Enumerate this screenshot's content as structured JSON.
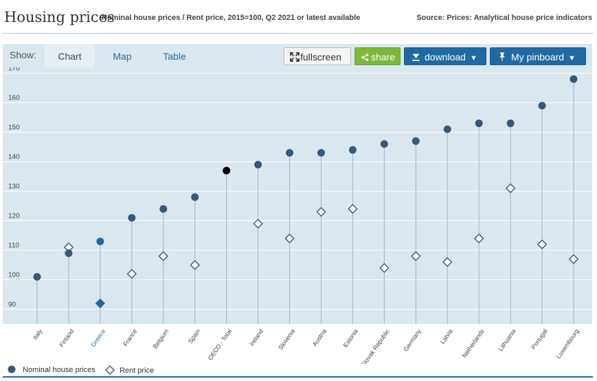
{
  "header": {
    "title": "Housing prices",
    "subtitle": "Nominal house prices / Rent price, 2015=100, Q2 2021 or latest available",
    "source": "Source: Prices: Analytical house price indicators"
  },
  "toolbar": {
    "show_label": "Show:",
    "tabs": [
      {
        "label": "Chart",
        "active": true
      },
      {
        "label": "Map",
        "active": false
      },
      {
        "label": "Table",
        "active": false
      }
    ],
    "fullscreen_label": "fullscreen",
    "share_label": "share",
    "download_label": "download",
    "pinboard_label": "My pinboard",
    "icons": {
      "fullscreen": "expand-icon",
      "share": "share-icon",
      "download": "download-icon",
      "pinboard": "pin-icon",
      "caret": "chevron-down-icon"
    }
  },
  "legend": {
    "nominal": "Nominal house prices",
    "rent": "Rent price"
  },
  "colors": {
    "plot_bg": "#dbe7ef",
    "series": "#35597a",
    "highlight": "#1f6aa5",
    "oecd": "#000000",
    "stem": "#9fb0bd",
    "grid": "#ffffff",
    "highlight_label": "#2a6b9c"
  },
  "chart_data": {
    "type": "scatter",
    "title": "Housing prices",
    "ylim": [
      85,
      172
    ],
    "yticks": [
      90,
      100,
      110,
      120,
      130,
      140,
      150,
      160,
      170
    ],
    "grid": true,
    "legend_position": "bottom-left",
    "highlight": "Greece",
    "categories": [
      "Italy",
      "Finland",
      "Greece",
      "France",
      "Belgium",
      "Spain",
      "OECD - Total",
      "Ireland",
      "Slovenia",
      "Austria",
      "Estonia",
      "Slovak Republic",
      "Germany",
      "Latvia",
      "Netherlands",
      "Lithuania",
      "Portugal",
      "Luxembourg"
    ],
    "series": [
      {
        "name": "Nominal house prices",
        "marker": "circle",
        "values": [
          101,
          109,
          113,
          121,
          124,
          128,
          137,
          139,
          143,
          143,
          144,
          146,
          147,
          151,
          153,
          153,
          159,
          168
        ]
      },
      {
        "name": "Rent price",
        "marker": "diamond",
        "values": [
          null,
          111,
          92,
          102,
          108,
          105,
          null,
          119,
          114,
          123,
          124,
          104,
          108,
          106,
          114,
          131,
          112,
          107
        ]
      }
    ]
  }
}
